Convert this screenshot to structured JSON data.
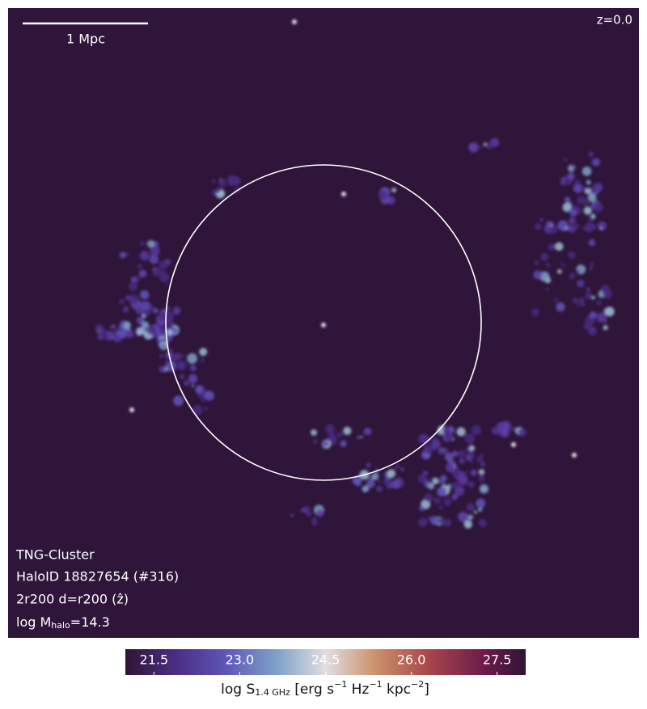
{
  "scale_bar": {
    "label": "1 Mpc"
  },
  "redshift": "z=0.0",
  "info": {
    "simulation": "TNG-Cluster",
    "halo": "HaloID 18827654 (#316)",
    "projection": "2r200 d=r200 (ẑ)",
    "mass": [
      "log M",
      "halo",
      "=14.3"
    ]
  },
  "colorbar": {
    "range": [
      21,
      28
    ],
    "ticks": [
      {
        "value": 21.5,
        "label": "21.5"
      },
      {
        "value": 23,
        "label": "23.0"
      },
      {
        "value": 24.5,
        "label": "24.5"
      },
      {
        "value": 26,
        "label": "26.0"
      },
      {
        "value": 27.5,
        "label": "27.5"
      }
    ],
    "label": [
      "log S",
      "1.4 GHz",
      " [erg s",
      "−1",
      " Hz",
      "−1",
      " kpc",
      "−2",
      "]"
    ]
  }
}
